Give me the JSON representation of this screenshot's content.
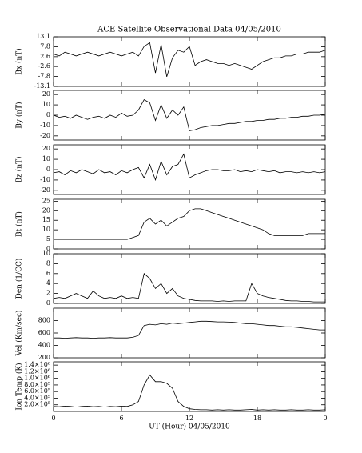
{
  "chart_data": [
    {
      "type": "line",
      "title": "ACE Satellite Observational Data   04/05/2010",
      "ylabel": "Bx (nT)",
      "color": "#000000",
      "x": [
        0,
        0.5,
        1,
        1.5,
        2,
        2.5,
        3,
        3.5,
        4,
        4.5,
        5,
        5.5,
        6,
        6.5,
        7,
        7.5,
        8,
        8.5,
        9,
        9.5,
        10,
        10.5,
        11,
        11.5,
        12,
        12.5,
        13,
        13.5,
        14,
        14.5,
        15,
        15.5,
        16,
        16.5,
        17,
        17.5,
        18,
        18.5,
        19,
        19.5,
        20,
        20.5,
        21,
        21.5,
        22,
        22.5,
        23,
        23.5,
        24
      ],
      "values": [
        4,
        3,
        5,
        4,
        3,
        4,
        5,
        4,
        3,
        4,
        5,
        4,
        3,
        4,
        5,
        3,
        8,
        10,
        -6,
        9,
        -8,
        2,
        6,
        5,
        8,
        -2,
        0,
        1,
        0,
        -1,
        -1,
        -2,
        -1,
        -2,
        -3,
        -4,
        -2,
        0,
        1,
        2,
        2,
        3,
        3,
        4,
        4,
        5,
        5,
        5,
        6
      ],
      "xlim": [
        0,
        24
      ],
      "ylim": [
        -13.1,
        13.1
      ],
      "yticks": [
        13.1,
        7.8,
        2.6,
        -2.6,
        -7.8,
        -13.1
      ]
    },
    {
      "type": "line",
      "ylabel": "By (nT)",
      "color": "#000000",
      "x": [
        0,
        0.5,
        1,
        1.5,
        2,
        2.5,
        3,
        3.5,
        4,
        4.5,
        5,
        5.5,
        6,
        6.5,
        7,
        7.5,
        8,
        8.5,
        9,
        9.5,
        10,
        10.5,
        11,
        11.5,
        12,
        12.5,
        13,
        13.5,
        14,
        14.5,
        15,
        15.5,
        16,
        16.5,
        17,
        17.5,
        18,
        18.5,
        19,
        19.5,
        20,
        20.5,
        21,
        21.5,
        22,
        22.5,
        23,
        23.5,
        24
      ],
      "values": [
        0,
        -2,
        -1,
        -3,
        0,
        -2,
        -4,
        -2,
        -1,
        -3,
        0,
        -2,
        2,
        -1,
        0,
        5,
        15,
        12,
        -5,
        10,
        -3,
        5,
        0,
        8,
        -15,
        -14,
        -12,
        -11,
        -10,
        -10,
        -9,
        -8,
        -8,
        -7,
        -6,
        -6,
        -5,
        -5,
        -4,
        -4,
        -3,
        -3,
        -2,
        -2,
        -1,
        -1,
        0,
        0,
        1
      ],
      "xlim": [
        0,
        24
      ],
      "ylim": [
        -24,
        24
      ],
      "yticks": [
        20,
        10,
        0,
        -10,
        -20
      ]
    },
    {
      "type": "line",
      "ylabel": "Bz (nT)",
      "color": "#000000",
      "x": [
        0,
        0.5,
        1,
        1.5,
        2,
        2.5,
        3,
        3.5,
        4,
        4.5,
        5,
        5.5,
        6,
        6.5,
        7,
        7.5,
        8,
        8.5,
        9,
        9.5,
        10,
        10.5,
        11,
        11.5,
        12,
        12.5,
        13,
        13.5,
        14,
        14.5,
        15,
        15.5,
        16,
        16.5,
        17,
        17.5,
        18,
        18.5,
        19,
        19.5,
        20,
        20.5,
        21,
        21.5,
        22,
        22.5,
        23,
        23.5,
        24
      ],
      "values": [
        -3,
        -2,
        -5,
        -1,
        -3,
        0,
        -2,
        -4,
        0,
        -3,
        -2,
        -5,
        -1,
        -3,
        0,
        2,
        -8,
        5,
        -10,
        8,
        -5,
        3,
        5,
        15,
        -8,
        -5,
        -3,
        -1,
        0,
        0,
        -1,
        -1,
        0,
        -2,
        -1,
        -2,
        0,
        -1,
        -2,
        -1,
        -3,
        -2,
        -2,
        -3,
        -2,
        -3,
        -2,
        -3,
        -2
      ],
      "xlim": [
        0,
        24
      ],
      "ylim": [
        -24,
        24
      ],
      "yticks": [
        20,
        10,
        0,
        -10,
        -20
      ]
    },
    {
      "type": "line",
      "ylabel": "Bt (nT)",
      "color": "#000000",
      "x": [
        0,
        0.5,
        1,
        1.5,
        2,
        2.5,
        3,
        3.5,
        4,
        4.5,
        5,
        5.5,
        6,
        6.5,
        7,
        7.5,
        8,
        8.5,
        9,
        9.5,
        10,
        10.5,
        11,
        11.5,
        12,
        12.5,
        13,
        13.5,
        14,
        14.5,
        15,
        15.5,
        16,
        16.5,
        17,
        17.5,
        18,
        18.5,
        19,
        19.5,
        20,
        20.5,
        21,
        21.5,
        22,
        22.5,
        23,
        23.5,
        24
      ],
      "values": [
        5,
        5,
        5,
        5,
        5,
        5,
        5,
        5,
        5,
        5,
        5,
        5,
        5,
        5,
        6,
        7,
        14,
        16,
        13,
        15,
        12,
        14,
        16,
        17,
        20,
        21,
        21,
        20,
        19,
        18,
        17,
        16,
        15,
        14,
        13,
        12,
        11,
        10,
        8,
        7,
        7,
        7,
        7,
        7,
        7,
        8,
        8,
        8,
        8
      ],
      "xlim": [
        0,
        24
      ],
      "ylim": [
        0,
        26
      ],
      "yticks": [
        0,
        5,
        10,
        15,
        20,
        25
      ]
    },
    {
      "type": "line",
      "ylabel": "Den (1/CC)",
      "color": "#000000",
      "x": [
        0,
        0.5,
        1,
        1.5,
        2,
        2.5,
        3,
        3.5,
        4,
        4.5,
        5,
        5.5,
        6,
        6.5,
        7,
        7.5,
        8,
        8.5,
        9,
        9.5,
        10,
        10.5,
        11,
        11.5,
        12,
        12.5,
        13,
        13.5,
        14,
        14.5,
        15,
        15.5,
        16,
        16.5,
        17,
        17.5,
        18,
        18.5,
        19,
        19.5,
        20,
        20.5,
        21,
        21.5,
        22,
        22.5,
        23,
        23.5,
        24
      ],
      "values": [
        1,
        1.2,
        1,
        1.5,
        2,
        1.5,
        1,
        2.5,
        1.5,
        1,
        1.2,
        1,
        1.5,
        1,
        1.2,
        1,
        6,
        5,
        3,
        4,
        2,
        3,
        1.5,
        1,
        0.8,
        0.6,
        0.5,
        0.5,
        0.5,
        0.4,
        0.5,
        0.4,
        0.5,
        0.5,
        0.5,
        4,
        2,
        1.5,
        1.2,
        1,
        0.8,
        0.6,
        0.5,
        0.5,
        0.4,
        0.4,
        0.3,
        0.3,
        0.3
      ],
      "xlim": [
        0,
        24
      ],
      "ylim": [
        0,
        10
      ],
      "yticks": [
        0,
        2,
        4,
        6,
        8,
        10
      ]
    },
    {
      "type": "line",
      "ylabel": "Vel (Km/sec)",
      "color": "#000000",
      "x": [
        0,
        0.5,
        1,
        1.5,
        2,
        2.5,
        3,
        3.5,
        4,
        4.5,
        5,
        5.5,
        6,
        6.5,
        7,
        7.5,
        8,
        8.5,
        9,
        9.5,
        10,
        10.5,
        11,
        11.5,
        12,
        12.5,
        13,
        13.5,
        14,
        14.5,
        15,
        15.5,
        16,
        16.5,
        17,
        17.5,
        18,
        18.5,
        19,
        19.5,
        20,
        20.5,
        21,
        21.5,
        22,
        22.5,
        23,
        23.5,
        24
      ],
      "values": [
        520,
        520,
        515,
        520,
        525,
        520,
        520,
        515,
        520,
        520,
        525,
        520,
        520,
        520,
        530,
        560,
        720,
        740,
        730,
        750,
        740,
        760,
        750,
        760,
        770,
        780,
        790,
        790,
        785,
        780,
        780,
        775,
        770,
        760,
        750,
        750,
        740,
        730,
        720,
        720,
        710,
        700,
        700,
        690,
        680,
        670,
        660,
        650,
        650
      ],
      "xlim": [
        0,
        24
      ],
      "ylim": [
        200,
        1000
      ],
      "yticks": [
        200,
        400,
        600,
        800
      ]
    },
    {
      "type": "line",
      "ylabel": "Ion Temp (K)",
      "xlabel": "UT (Hour)  04/05/2010",
      "color": "#000000",
      "x": [
        0,
        0.5,
        1,
        1.5,
        2,
        2.5,
        3,
        3.5,
        4,
        4.5,
        5,
        5.5,
        6,
        6.5,
        7,
        7.5,
        8,
        8.5,
        9,
        9.5,
        10,
        10.5,
        11,
        11.5,
        12,
        12.5,
        13,
        13.5,
        14,
        14.5,
        15,
        15.5,
        16,
        16.5,
        17,
        17.5,
        18,
        18.5,
        19,
        19.5,
        20,
        20.5,
        21,
        21.5,
        22,
        22.5,
        23,
        23.5,
        24
      ],
      "values": [
        150000,
        140000,
        160000,
        150000,
        130000,
        150000,
        160000,
        140000,
        150000,
        130000,
        150000,
        140000,
        160000,
        150000,
        200000,
        300000,
        800000,
        1100000,
        900000,
        900000,
        850000,
        700000,
        300000,
        150000,
        80000,
        60000,
        50000,
        50000,
        40000,
        50000,
        40000,
        50000,
        40000,
        40000,
        50000,
        60000,
        40000,
        50000,
        40000,
        50000,
        40000,
        40000,
        50000,
        40000,
        40000,
        50000,
        40000,
        40000,
        50000
      ],
      "xlim": [
        0,
        24
      ],
      "ylim": [
        0,
        1500000
      ],
      "yticks": [
        {
          "value": 200000,
          "label": "2.0×10⁵"
        },
        {
          "value": 400000,
          "label": "4.0×10⁵"
        },
        {
          "value": 600000,
          "label": "6.0×10⁵"
        },
        {
          "value": 800000,
          "label": "8.0×10⁵"
        },
        {
          "value": 1000000,
          "label": "1.0×10⁶"
        },
        {
          "value": 1200000,
          "label": "1.2×10⁶"
        },
        {
          "value": 1400000,
          "label": "1.4×10⁶"
        }
      ],
      "xticks": [
        0,
        6,
        12,
        18,
        {
          "value": 24,
          "label": "0"
        }
      ]
    }
  ]
}
